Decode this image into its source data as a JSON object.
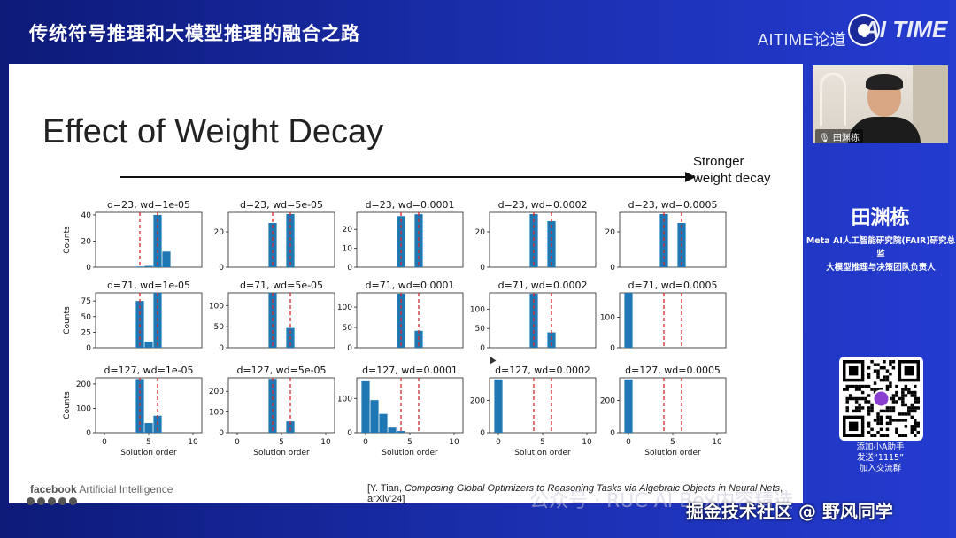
{
  "header": {
    "talk_title": "传统符号推理和大模型推理的融合之路",
    "brand": "AITIME论道",
    "watermark": "AI TIME"
  },
  "slide": {
    "title": "Effect of Weight Decay",
    "arrow_label_line1": "Stronger",
    "arrow_label_line2": "weight decay",
    "footer_brand": "facebook",
    "footer_unit": "Artificial Intelligence",
    "citation_prefix": "[Y. Tian, ",
    "citation_italic": "Composing Global Optimizers to Reasoning Tasks via Algebraic Objects in Neural Nets",
    "citation_suffix": ", arXiv'24]"
  },
  "chart_data": {
    "type": "bar",
    "xlabel": "Solution order",
    "ylabel": "Counts",
    "xlim": [
      -1,
      11
    ],
    "x_ticks": [
      0,
      5,
      10
    ],
    "vlines": [
      4,
      6
    ],
    "vline_color": "#d62728",
    "bar_color": "#1f77b4",
    "panels": [
      {
        "title": "d=23, wd=1e-05",
        "ylim": [
          0,
          42
        ],
        "yticks": [
          0,
          20,
          40
        ],
        "bars": [
          {
            "x": 4,
            "value": 0.5
          },
          {
            "x": 5,
            "value": 1
          },
          {
            "x": 6,
            "value": 40
          },
          {
            "x": 7,
            "value": 12
          }
        ]
      },
      {
        "title": "d=23, wd=5e-05",
        "ylim": [
          0,
          31
        ],
        "yticks": [
          0,
          20
        ],
        "bars": [
          {
            "x": 4,
            "value": 25
          },
          {
            "x": 6,
            "value": 30
          }
        ]
      },
      {
        "title": "d=23, wd=0.0001",
        "ylim": [
          0,
          29
        ],
        "yticks": [
          0,
          10,
          20
        ],
        "bars": [
          {
            "x": 4,
            "value": 27
          },
          {
            "x": 6,
            "value": 28
          }
        ]
      },
      {
        "title": "d=23, wd=0.0002",
        "ylim": [
          0,
          31
        ],
        "yticks": [
          0,
          20
        ],
        "bars": [
          {
            "x": 4,
            "value": 30
          },
          {
            "x": 6,
            "value": 26
          }
        ]
      },
      {
        "title": "d=23, wd=0.0005",
        "ylim": [
          0,
          31
        ],
        "yticks": [
          0,
          20
        ],
        "bars": [
          {
            "x": 4,
            "value": 30
          },
          {
            "x": 6,
            "value": 25
          }
        ]
      },
      {
        "title": "d=71, wd=1e-05",
        "ylim": [
          0,
          88
        ],
        "yticks": [
          0,
          25,
          50,
          75
        ],
        "bars": [
          {
            "x": 4,
            "value": 75
          },
          {
            "x": 5,
            "value": 10
          },
          {
            "x": 6,
            "value": 88
          }
        ]
      },
      {
        "title": "d=71, wd=5e-05",
        "ylim": [
          0,
          130
        ],
        "yticks": [
          0,
          50,
          100
        ],
        "bars": [
          {
            "x": 4,
            "value": 130
          },
          {
            "x": 6,
            "value": 47
          }
        ]
      },
      {
        "title": "d=71, wd=0.0001",
        "ylim": [
          0,
          135
        ],
        "yticks": [
          0,
          50,
          100
        ],
        "bars": [
          {
            "x": 4,
            "value": 133
          },
          {
            "x": 6,
            "value": 42
          }
        ]
      },
      {
        "title": "d=71, wd=0.0002",
        "ylim": [
          0,
          142
        ],
        "yticks": [
          0,
          50,
          100
        ],
        "bars": [
          {
            "x": 4,
            "value": 140
          },
          {
            "x": 6,
            "value": 40
          }
        ]
      },
      {
        "title": "d=71, wd=0.0005",
        "ylim": [
          0,
          180
        ],
        "yticks": [
          0,
          100
        ],
        "bars": [
          {
            "x": 0,
            "value": 180
          }
        ]
      },
      {
        "title": "d=127, wd=1e-05",
        "ylim": [
          0,
          225
        ],
        "yticks": [
          0,
          100,
          200
        ],
        "bars": [
          {
            "x": 4,
            "value": 220
          },
          {
            "x": 5,
            "value": 40
          },
          {
            "x": 6,
            "value": 70
          }
        ]
      },
      {
        "title": "d=127, wd=5e-05",
        "ylim": [
          0,
          265
        ],
        "yticks": [
          0,
          100,
          200
        ],
        "bars": [
          {
            "x": 4,
            "value": 260
          },
          {
            "x": 6,
            "value": 55
          }
        ]
      },
      {
        "title": "d=127, wd=0.0001",
        "ylim": [
          0,
          160
        ],
        "yticks": [
          0,
          100
        ],
        "bars": [
          {
            "x": 0,
            "value": 150
          },
          {
            "x": 1,
            "value": 95
          },
          {
            "x": 2,
            "value": 55
          },
          {
            "x": 3,
            "value": 15
          },
          {
            "x": 4,
            "value": 5
          }
        ]
      },
      {
        "title": "d=127, wd=0.0002",
        "ylim": [
          0,
          340
        ],
        "yticks": [
          0,
          200
        ],
        "bars": [
          {
            "x": 0,
            "value": 330
          }
        ]
      },
      {
        "title": "d=127, wd=0.0005",
        "ylim": [
          0,
          340
        ],
        "yticks": [
          0,
          200
        ],
        "bars": [
          {
            "x": 0,
            "value": 330
          }
        ]
      }
    ]
  },
  "speaker": {
    "camera_label": "田渊栋",
    "name": "田渊栋",
    "role_line1": "Meta AI人工智能研究院(FAIR)研究总监",
    "role_line2": "大模型推理与决策团队负责人"
  },
  "qr": {
    "caption_line1": "添加小A助手",
    "caption_line2": "发送“1115”",
    "caption_line3": "加入交流群"
  },
  "overlay": {
    "watermark": "公众号 · RUC AI Box内容精选",
    "community": "掘金技术社区 @ 野风同学"
  }
}
